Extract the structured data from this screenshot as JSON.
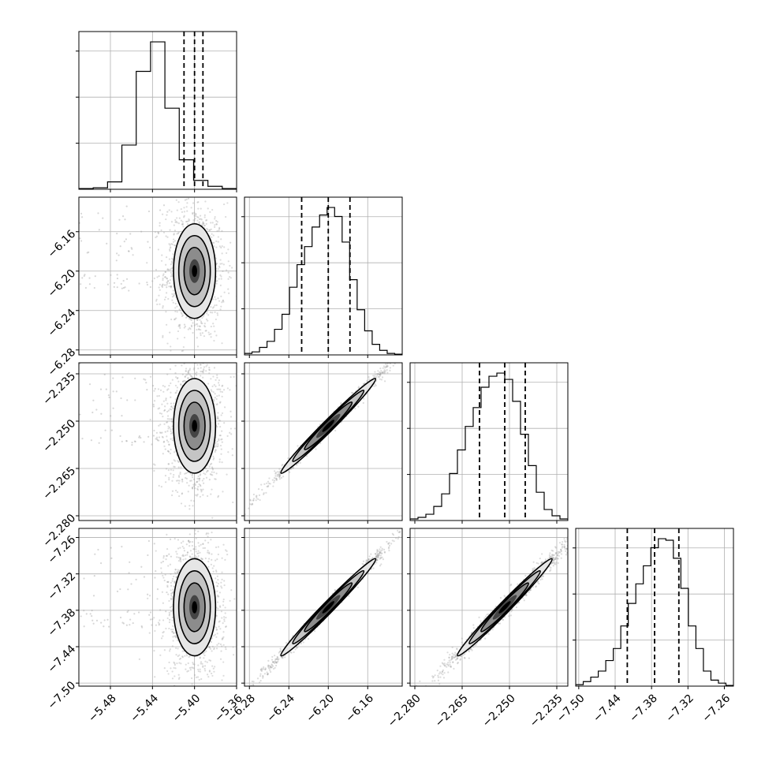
{
  "chart_data": {
    "type": "corner",
    "grid": true,
    "params": [
      {
        "range": [
          -5.51,
          -5.36
        ],
        "ticks": [
          -5.48,
          -5.44,
          -5.4,
          -5.36
        ],
        "tick_labels": [
          "−5.48",
          "−5.44",
          "−5.40",
          "−5.36"
        ],
        "quantiles": [
          -5.41,
          -5.4,
          -5.392
        ],
        "median": -5.4,
        "sigma": 0.01,
        "hist": [
          0.005,
          0.01,
          0.05,
          0.3,
          0.8,
          1.0,
          0.55,
          0.2,
          0.06,
          0.02,
          0.005
        ]
      },
      {
        "range": [
          -6.285,
          -6.125
        ],
        "ticks": [
          -6.28,
          -6.24,
          -6.2,
          -6.16
        ],
        "tick_labels": [
          "−6.28",
          "−6.24",
          "−6.20",
          "−6.16"
        ],
        "quantiles": [
          -6.227,
          -6.2,
          -6.178
        ],
        "median": -6.2,
        "sigma": 0.024,
        "hist": [
          0.01,
          0.02,
          0.05,
          0.09,
          0.17,
          0.27,
          0.45,
          0.6,
          0.72,
          0.85,
          0.93,
          0.98,
          0.92,
          0.75,
          0.5,
          0.3,
          0.16,
          0.07,
          0.03,
          0.01,
          0.005
        ]
      },
      {
        "range": [
          -2.2815,
          -2.2315
        ],
        "ticks": [
          -2.28,
          -2.265,
          -2.25,
          -2.235
        ],
        "tick_labels": [
          "−2.280",
          "−2.265",
          "−2.250",
          "−2.235"
        ],
        "quantiles": [
          -2.2595,
          -2.2515,
          -2.245
        ],
        "median": -2.2515,
        "sigma": 0.0075,
        "hist": [
          0.01,
          0.02,
          0.04,
          0.09,
          0.17,
          0.3,
          0.45,
          0.6,
          0.72,
          0.85,
          0.92,
          0.94,
          0.9,
          0.76,
          0.55,
          0.35,
          0.18,
          0.07,
          0.03,
          0.01
        ]
      },
      {
        "range": [
          -7.505,
          -7.245
        ],
        "ticks": [
          -7.5,
          -7.44,
          -7.38,
          -7.32,
          -7.26
        ],
        "tick_labels": [
          "−7.50",
          "−7.44",
          "−7.38",
          "−7.32",
          "−7.26"
        ],
        "quantiles": [
          -7.42,
          -7.375,
          -7.335
        ],
        "median": -7.375,
        "sigma": 0.04,
        "hist": [
          0.01,
          0.03,
          0.06,
          0.1,
          0.17,
          0.25,
          0.4,
          0.55,
          0.68,
          0.8,
          0.92,
          0.98,
          0.97,
          0.85,
          0.65,
          0.4,
          0.25,
          0.1,
          0.04,
          0.02,
          0.005
        ]
      }
    ],
    "correlations": {
      "1-0": 0.0,
      "2-0": 0.0,
      "3-0": 0.0,
      "2-1": 0.995,
      "3-1": 0.995,
      "3-2": 0.99
    },
    "contour_levels_sigma": [
      0.5,
      1.0,
      1.5,
      2.0
    ]
  }
}
